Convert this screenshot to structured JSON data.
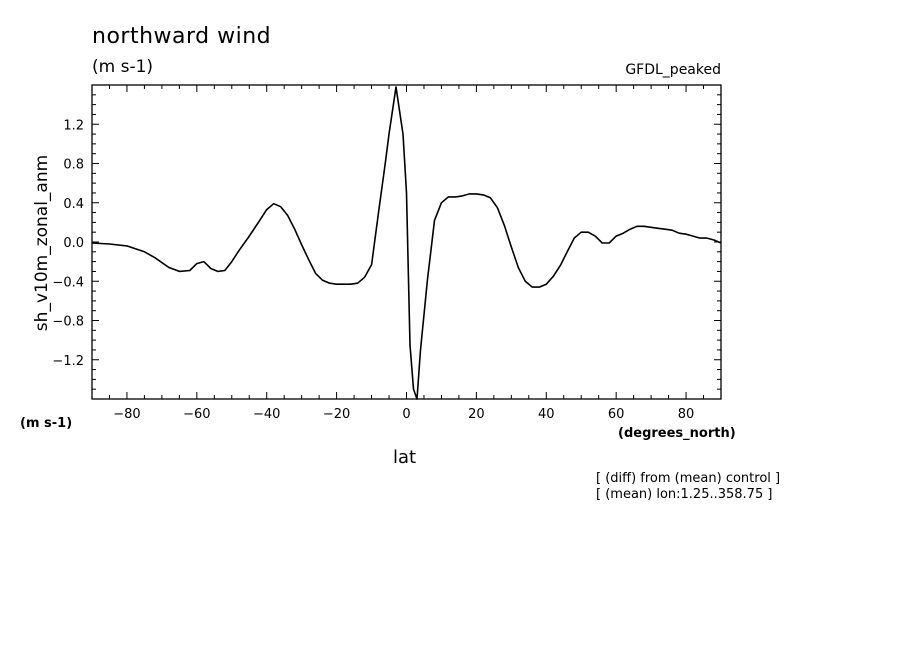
{
  "chart_data": {
    "type": "line",
    "title": "northward wind",
    "units": "(m s-1)",
    "model": "GFDL_peaked",
    "ylabel": "sh_v10m_zonal_anm",
    "y_units": "(m s-1)",
    "xlabel": "lat",
    "x_units": "(degrees_north)",
    "notes": [
      "[ (diff) from (mean) control ]",
      "[ (mean) lon:1.25..358.75 ]"
    ],
    "xlim": [
      -90,
      90
    ],
    "ylim": [
      -1.6,
      1.6
    ],
    "x_ticks": [
      -80,
      -60,
      -40,
      -20,
      0,
      20,
      40,
      60,
      80
    ],
    "x_tick_labels": [
      "−80",
      "−60",
      "−40",
      "−20",
      "0",
      "20",
      "40",
      "60",
      "80"
    ],
    "y_ticks": [
      -1.2,
      -0.8,
      -0.4,
      0.0,
      0.4,
      0.8,
      1.2
    ],
    "y_tick_labels": [
      "−1.2",
      "−0.8",
      "−0.4",
      "0.0",
      "0.4",
      "0.8",
      "1.2"
    ],
    "grid": false,
    "line_color": "#000000",
    "series": [
      {
        "x": [
          -90,
          -85,
          -80,
          -75,
          -72,
          -68,
          -65,
          -62,
          -60,
          -58,
          -56,
          -54,
          -52,
          -50,
          -48,
          -45,
          -42,
          -40,
          -38,
          -36,
          -34,
          -32,
          -30,
          -28,
          -26,
          -24,
          -22,
          -20,
          -18,
          -16,
          -14,
          -12,
          -10,
          -8,
          -6,
          -5,
          -3,
          -1,
          0,
          1,
          2,
          3,
          4,
          6,
          8,
          10,
          12,
          14,
          16,
          18,
          20,
          22,
          24,
          26,
          28,
          30,
          32,
          34,
          36,
          38,
          40,
          42,
          44,
          46,
          48,
          50,
          52,
          54,
          56,
          58,
          60,
          62,
          64,
          66,
          68,
          70,
          72,
          74,
          76,
          78,
          80,
          82,
          84,
          86,
          88,
          90
        ],
        "y": [
          -0.01,
          -0.02,
          -0.04,
          -0.1,
          -0.16,
          -0.26,
          -0.3,
          -0.29,
          -0.22,
          -0.2,
          -0.27,
          -0.3,
          -0.29,
          -0.2,
          -0.09,
          0.06,
          0.22,
          0.33,
          0.39,
          0.36,
          0.27,
          0.13,
          -0.03,
          -0.18,
          -0.32,
          -0.39,
          -0.42,
          -0.43,
          -0.43,
          -0.43,
          -0.42,
          -0.36,
          -0.23,
          0.3,
          0.82,
          1.1,
          1.58,
          1.1,
          0.5,
          -1.05,
          -1.5,
          -1.6,
          -1.1,
          -0.38,
          0.22,
          0.4,
          0.46,
          0.46,
          0.47,
          0.49,
          0.49,
          0.48,
          0.45,
          0.35,
          0.17,
          -0.05,
          -0.26,
          -0.4,
          -0.46,
          -0.46,
          -0.43,
          -0.35,
          -0.24,
          -0.1,
          0.04,
          0.1,
          0.1,
          0.06,
          -0.01,
          -0.01,
          0.06,
          0.09,
          0.13,
          0.16,
          0.16,
          0.15,
          0.14,
          0.13,
          0.12,
          0.09,
          0.08,
          0.06,
          0.04,
          0.04,
          0.02,
          -0.01
        ]
      }
    ]
  }
}
